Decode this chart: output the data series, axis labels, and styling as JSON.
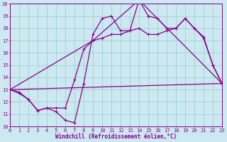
{
  "xlabel": "Windchill (Refroidissement éolien,°C)",
  "bg_color": "#cce8f0",
  "grid_color": "#99cccc",
  "line_color": "#880088",
  "xmin": 0,
  "xmax": 23,
  "ymin": 10,
  "ymax": 20,
  "line1_x": [
    0,
    1,
    2,
    3,
    4,
    5,
    6,
    7,
    8,
    9,
    10,
    11,
    12,
    13,
    14,
    15,
    16,
    17,
    18,
    19,
    20,
    21,
    22,
    23
  ],
  "line1_y": [
    13.0,
    12.8,
    12.2,
    11.3,
    11.5,
    11.2,
    10.5,
    10.3,
    13.5,
    17.5,
    18.8,
    19.0,
    17.8,
    17.8,
    20.3,
    19.0,
    18.8,
    18.0,
    18.0,
    18.8,
    18.0,
    17.3,
    15.0,
    13.5
  ],
  "line2_x": [
    0,
    1,
    2,
    3,
    4,
    5,
    6,
    7,
    8,
    9,
    10,
    11,
    12,
    13,
    14,
    15,
    16,
    17,
    18,
    19,
    20,
    21,
    22,
    23
  ],
  "line2_y": [
    13.0,
    12.7,
    12.2,
    11.3,
    11.5,
    11.5,
    11.5,
    13.8,
    16.3,
    17.0,
    17.2,
    17.5,
    17.5,
    17.8,
    18.0,
    17.5,
    17.5,
    17.8,
    18.0,
    18.8,
    18.0,
    17.2,
    15.0,
    13.5
  ],
  "line3_x": [
    0,
    9,
    14,
    23
  ],
  "line3_y": [
    13.0,
    17.0,
    20.3,
    13.5
  ],
  "line4_x": [
    0,
    23
  ],
  "line4_y": [
    13.0,
    13.5
  ],
  "xlabel_fontsize": 5.5,
  "tick_fontsize": 5,
  "linewidth": 0.9,
  "marker_size": 3
}
